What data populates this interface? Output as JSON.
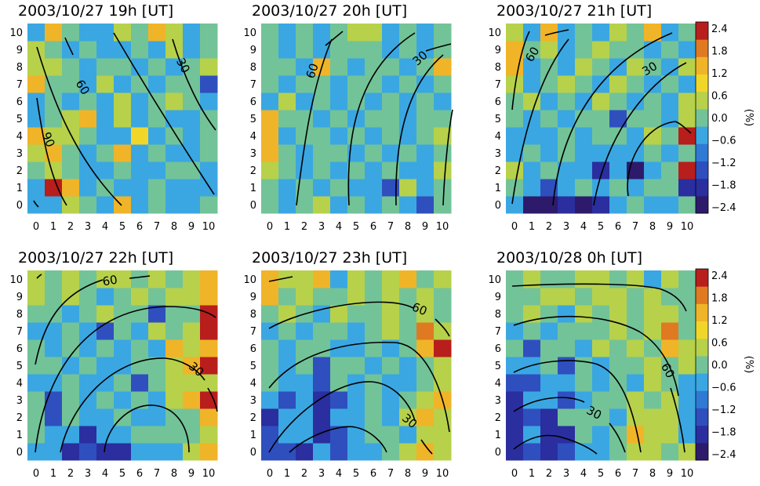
{
  "chart_data": [
    {
      "type": "heatmap",
      "title": "2003/10/27 19h [UT]",
      "x": [
        0,
        1,
        2,
        3,
        4,
        5,
        6,
        7,
        8,
        9,
        10
      ],
      "y": [
        0,
        1,
        2,
        3,
        4,
        5,
        6,
        7,
        8,
        9,
        10
      ],
      "z": [
        [
          -0.3,
          -0.6,
          0.6,
          0.0,
          -0.3,
          1.2,
          -0.3,
          0.0,
          -0.6,
          -0.3,
          0.0
        ],
        [
          -0.6,
          2.0,
          1.2,
          -0.6,
          0.0,
          -0.6,
          -0.3,
          0.0,
          -0.6,
          -0.3,
          -0.6
        ],
        [
          0.0,
          0.6,
          0.0,
          -0.3,
          -0.6,
          0.0,
          -0.6,
          -0.6,
          0.0,
          0.0,
          -0.6
        ],
        [
          0.6,
          1.2,
          0.0,
          -0.6,
          0.0,
          1.2,
          -0.6,
          0.0,
          -0.6,
          -0.6,
          0.0
        ],
        [
          1.2,
          0.6,
          0.6,
          0.0,
          -0.6,
          -0.3,
          0.9,
          -0.6,
          0.0,
          -0.6,
          0.0
        ],
        [
          -0.6,
          0.0,
          0.6,
          1.2,
          -0.6,
          0.6,
          -0.3,
          0.0,
          -0.6,
          -0.6,
          0.0
        ],
        [
          -0.6,
          0.0,
          -0.6,
          0.0,
          -0.3,
          0.6,
          -0.6,
          0.0,
          0.6,
          0.0,
          -0.6
        ],
        [
          1.5,
          0.0,
          0.0,
          -0.6,
          0.6,
          -0.6,
          0.0,
          -0.6,
          0.0,
          0.0,
          -1.2
        ],
        [
          0.6,
          0.6,
          0.0,
          -0.6,
          0.0,
          0.0,
          -0.6,
          0.0,
          -0.6,
          0.0,
          0.6
        ],
        [
          0.6,
          0.0,
          -0.6,
          0.0,
          -0.6,
          -0.6,
          0.0,
          -0.6,
          0.6,
          -0.6,
          0.0
        ],
        [
          -0.3,
          1.2,
          0.0,
          -0.6,
          -0.3,
          0.6,
          0.0,
          1.2,
          0.6,
          -0.6,
          0.0
        ]
      ],
      "contour_labels": [
        "60",
        "30",
        "90"
      ],
      "zlim": [
        -2.4,
        2.4
      ]
    },
    {
      "type": "heatmap",
      "title": "2003/10/27 20h [UT]",
      "x": [
        0,
        1,
        2,
        3,
        4,
        5,
        6,
        7,
        8,
        9,
        10
      ],
      "y": [
        0,
        1,
        2,
        3,
        4,
        5,
        6,
        7,
        8,
        9,
        10
      ],
      "z": [
        [
          0.0,
          -0.6,
          0.0,
          0.6,
          -0.6,
          0.0,
          -0.6,
          0.0,
          -0.6,
          -1.5,
          0.0
        ],
        [
          0.0,
          -0.6,
          0.0,
          -0.6,
          0.0,
          -0.6,
          -0.6,
          -1.2,
          0.6,
          -0.6,
          0.0
        ],
        [
          0.6,
          0.0,
          -0.6,
          0.0,
          -0.6,
          0.0,
          -0.6,
          0.0,
          -0.6,
          -0.6,
          0.6
        ],
        [
          1.2,
          0.0,
          -0.6,
          0.0,
          0.0,
          -0.6,
          0.0,
          -0.6,
          0.0,
          -0.6,
          0.0
        ],
        [
          1.5,
          -0.6,
          0.0,
          0.0,
          -0.6,
          0.0,
          -0.6,
          0.0,
          -0.6,
          0.0,
          0.6
        ],
        [
          1.2,
          0.0,
          0.0,
          -0.6,
          0.0,
          -0.6,
          0.0,
          0.0,
          -0.6,
          0.0,
          0.0
        ],
        [
          -0.3,
          0.6,
          -0.6,
          0.0,
          -0.6,
          0.0,
          -0.6,
          0.0,
          -0.6,
          0.0,
          -0.6
        ],
        [
          0.0,
          -0.6,
          0.0,
          0.0,
          -0.6,
          0.0,
          0.0,
          -0.6,
          0.0,
          -0.6,
          0.0
        ],
        [
          0.0,
          0.0,
          -0.6,
          1.5,
          0.0,
          -0.6,
          0.0,
          0.0,
          -0.6,
          0.0,
          1.5
        ],
        [
          0.0,
          -0.6,
          0.0,
          -0.6,
          0.0,
          0.0,
          0.0,
          -0.6,
          0.0,
          -0.6,
          0.0
        ],
        [
          0.0,
          -0.6,
          0.0,
          -0.6,
          0.0,
          0.6,
          0.6,
          -0.6,
          0.0,
          -0.6,
          0.0
        ]
      ],
      "contour_labels": [
        "60",
        "30"
      ],
      "zlim": [
        -2.4,
        2.4
      ]
    },
    {
      "type": "heatmap",
      "title": "2003/10/27 21h [UT]",
      "x": [
        0,
        1,
        2,
        3,
        4,
        5,
        6,
        7,
        8,
        9,
        10
      ],
      "y": [
        0,
        1,
        2,
        3,
        4,
        5,
        6,
        7,
        8,
        9,
        10
      ],
      "z": [
        [
          -0.3,
          -2.0,
          -2.2,
          -1.8,
          -2.0,
          -1.8,
          -0.6,
          0.0,
          -0.6,
          -0.3,
          0.0
        ],
        [
          0.0,
          -0.6,
          -1.2,
          -0.6,
          0.0,
          -0.6,
          0.0,
          -0.6,
          0.0,
          0.0,
          -1.8
        ],
        [
          0.6,
          -0.6,
          0.0,
          -0.6,
          -0.6,
          -1.8,
          -0.6,
          -2.0,
          -0.6,
          0.0,
          2.0
        ],
        [
          -0.6,
          0.0,
          -0.6,
          0.0,
          -0.6,
          -0.6,
          -0.6,
          -0.6,
          0.0,
          -0.6,
          0.0
        ],
        [
          -0.6,
          -0.3,
          -0.6,
          0.0,
          -0.6,
          0.0,
          0.0,
          -0.6,
          0.6,
          0.0,
          2.0
        ],
        [
          0.0,
          -0.6,
          0.0,
          -0.6,
          0.0,
          0.0,
          -1.5,
          0.0,
          0.0,
          -0.6,
          0.6
        ],
        [
          0.0,
          0.6,
          -0.6,
          0.0,
          -0.6,
          0.6,
          0.0,
          -0.6,
          0.0,
          -0.6,
          0.6
        ],
        [
          0.6,
          -0.6,
          0.0,
          0.6,
          0.0,
          -0.6,
          0.6,
          0.0,
          -0.6,
          0.0,
          -0.6
        ],
        [
          1.2,
          -0.6,
          0.0,
          -0.6,
          0.6,
          0.0,
          -0.6,
          0.6,
          0.0,
          -0.6,
          0.6
        ],
        [
          1.2,
          0.0,
          0.6,
          -0.6,
          0.0,
          0.6,
          0.0,
          0.0,
          -0.6,
          0.0,
          -0.6
        ],
        [
          0.6,
          -0.6,
          1.5,
          -0.6,
          0.0,
          -0.6,
          0.6,
          0.0,
          1.5,
          -0.6,
          0.0
        ]
      ],
      "contour_labels": [
        "60",
        "30"
      ],
      "zlim": [
        -2.4,
        2.4
      ]
    },
    {
      "type": "heatmap",
      "title": "2003/10/27 22h [UT]",
      "x": [
        0,
        1,
        2,
        3,
        4,
        5,
        6,
        7,
        8,
        9,
        10
      ],
      "y": [
        0,
        1,
        2,
        3,
        4,
        5,
        6,
        7,
        8,
        9,
        10
      ],
      "z": [
        [
          -0.3,
          -0.6,
          -1.8,
          -1.5,
          -1.8,
          -1.8,
          -0.6,
          -0.6,
          -0.6,
          0.6,
          1.2
        ],
        [
          0.0,
          -0.6,
          -0.6,
          -1.8,
          -0.6,
          -0.6,
          0.0,
          0.0,
          0.0,
          0.0,
          0.6
        ],
        [
          0.0,
          -1.5,
          0.0,
          -0.6,
          -0.6,
          0.0,
          -0.6,
          -0.6,
          0.0,
          0.0,
          1.2
        ],
        [
          0.0,
          -1.2,
          0.0,
          -0.6,
          0.0,
          -0.6,
          0.0,
          -0.6,
          0.6,
          1.2,
          2.0
        ],
        [
          -0.6,
          -0.6,
          0.0,
          -0.6,
          -0.6,
          0.0,
          -1.2,
          0.0,
          0.6,
          0.6,
          0.6
        ],
        [
          0.0,
          0.0,
          -0.6,
          0.0,
          -0.6,
          -0.6,
          0.0,
          0.0,
          0.6,
          1.2,
          2.0
        ],
        [
          0.0,
          -0.6,
          0.0,
          -0.6,
          0.0,
          -0.6,
          0.0,
          -0.6,
          1.2,
          0.6,
          1.5
        ],
        [
          -0.6,
          -0.6,
          0.0,
          -0.6,
          -1.2,
          0.0,
          -0.6,
          0.6,
          0.0,
          0.6,
          2.0
        ],
        [
          0.0,
          0.0,
          -0.6,
          0.0,
          0.6,
          0.0,
          0.0,
          -1.5,
          0.0,
          0.0,
          2.0
        ],
        [
          0.6,
          0.0,
          0.6,
          0.0,
          -0.6,
          0.0,
          0.6,
          0.0,
          0.6,
          0.6,
          1.2
        ],
        [
          0.6,
          0.0,
          0.6,
          0.0,
          0.6,
          0.6,
          0.0,
          0.6,
          0.0,
          0.6,
          1.2
        ]
      ],
      "contour_labels": [
        "60",
        "30"
      ],
      "zlim": [
        -2.4,
        2.4
      ]
    },
    {
      "type": "heatmap",
      "title": "2003/10/27 23h [UT]",
      "x": [
        0,
        1,
        2,
        3,
        4,
        5,
        6,
        7,
        8,
        9,
        10
      ],
      "y": [
        0,
        1,
        2,
        3,
        4,
        5,
        6,
        7,
        8,
        9,
        10
      ],
      "z": [
        [
          -1.5,
          -1.5,
          -1.8,
          -0.6,
          -1.5,
          -0.6,
          -0.6,
          0.0,
          0.6,
          1.5,
          0.6
        ],
        [
          -1.2,
          -0.6,
          -0.6,
          -1.8,
          -1.2,
          -0.6,
          0.0,
          0.0,
          -0.6,
          0.6,
          0.6
        ],
        [
          -1.8,
          -0.6,
          -0.6,
          -1.8,
          -0.6,
          -0.6,
          0.0,
          -0.6,
          0.6,
          1.5,
          0.6
        ],
        [
          -0.6,
          -1.2,
          -0.6,
          -1.8,
          -1.2,
          -0.6,
          0.0,
          -0.6,
          0.0,
          0.6,
          1.5
        ],
        [
          0.0,
          -0.6,
          -0.6,
          -1.2,
          0.0,
          -0.6,
          0.0,
          -0.6,
          -0.6,
          0.0,
          0.6
        ],
        [
          0.0,
          -0.6,
          0.0,
          -1.2,
          0.0,
          0.0,
          -0.6,
          0.0,
          -0.6,
          0.0,
          0.6
        ],
        [
          0.0,
          -0.6,
          0.0,
          0.0,
          -0.6,
          -0.6,
          0.0,
          -0.6,
          0.0,
          1.5,
          2.0
        ],
        [
          -0.6,
          0.0,
          -0.6,
          0.0,
          0.0,
          -0.6,
          0.0,
          0.6,
          0.0,
          1.8,
          0.6
        ],
        [
          0.0,
          0.6,
          0.0,
          -0.6,
          0.6,
          0.0,
          0.0,
          0.6,
          0.0,
          0.6,
          0.0
        ],
        [
          1.2,
          0.0,
          0.6,
          0.0,
          0.0,
          0.6,
          0.0,
          0.6,
          0.0,
          0.6,
          0.0
        ],
        [
          1.5,
          0.6,
          0.6,
          1.5,
          -0.6,
          0.6,
          0.0,
          0.6,
          1.2,
          0.0,
          0.6
        ]
      ],
      "contour_labels": [
        "60",
        "30"
      ],
      "zlim": [
        -2.4,
        2.4
      ]
    },
    {
      "type": "heatmap",
      "title": "2003/10/28  0h [UT]",
      "x": [
        0,
        1,
        2,
        3,
        4,
        5,
        6,
        7,
        8,
        9,
        10
      ],
      "y": [
        0,
        1,
        2,
        3,
        4,
        5,
        6,
        7,
        8,
        9,
        10
      ],
      "z": [
        [
          -1.8,
          -1.5,
          -1.8,
          -1.2,
          -0.6,
          -0.6,
          0.0,
          0.6,
          0.6,
          0.0,
          0.6
        ],
        [
          -1.8,
          -0.6,
          -1.8,
          -1.8,
          0.0,
          -0.6,
          0.0,
          1.5,
          0.6,
          0.6,
          -0.6
        ],
        [
          -1.8,
          -1.2,
          -1.8,
          0.0,
          0.0,
          0.0,
          -0.6,
          0.6,
          0.6,
          0.6,
          -0.6
        ],
        [
          -1.8,
          -0.6,
          -0.6,
          -1.2,
          -0.6,
          0.0,
          0.0,
          0.6,
          0.0,
          0.6,
          -0.6
        ],
        [
          -1.2,
          -1.5,
          -0.6,
          -0.6,
          0.0,
          -0.6,
          0.0,
          -0.6,
          0.6,
          0.0,
          -0.6
        ],
        [
          -0.6,
          -0.6,
          0.0,
          -1.2,
          0.0,
          -0.6,
          0.0,
          0.0,
          0.6,
          0.0,
          0.6
        ],
        [
          0.0,
          -1.2,
          0.0,
          0.0,
          -0.6,
          0.6,
          0.0,
          0.6,
          0.0,
          1.2,
          0.6
        ],
        [
          -0.6,
          0.0,
          -0.6,
          0.0,
          0.0,
          0.0,
          0.6,
          0.0,
          0.6,
          1.8,
          0.0
        ],
        [
          0.0,
          0.6,
          0.0,
          -0.6,
          0.6,
          0.0,
          0.6,
          0.0,
          0.6,
          0.6,
          0.0
        ],
        [
          0.0,
          0.0,
          0.6,
          0.6,
          0.0,
          0.6,
          0.6,
          0.0,
          0.6,
          0.0,
          0.0
        ],
        [
          0.0,
          0.6,
          0.0,
          0.0,
          0.6,
          0.6,
          0.0,
          0.6,
          -0.6,
          0.6,
          0.0
        ]
      ],
      "contour_labels": [
        "60",
        "30"
      ],
      "zlim": [
        -2.4,
        2.4
      ]
    }
  ],
  "colorbar": {
    "ticks": [
      "2.4",
      "1.8",
      "1.2",
      "0.6",
      "0.0",
      "−0.6",
      "−1.2",
      "−1.8",
      "−2.4"
    ],
    "unit": "(%)",
    "range": [
      -2.4,
      2.4
    ],
    "colors": [
      "#2e1a6b",
      "#2a2e9e",
      "#2f4fbf",
      "#2e7ad4",
      "#3aa7e2",
      "#73c398",
      "#b7d14b",
      "#f1d62a",
      "#f0b428",
      "#e07a22",
      "#b81e1c"
    ]
  }
}
